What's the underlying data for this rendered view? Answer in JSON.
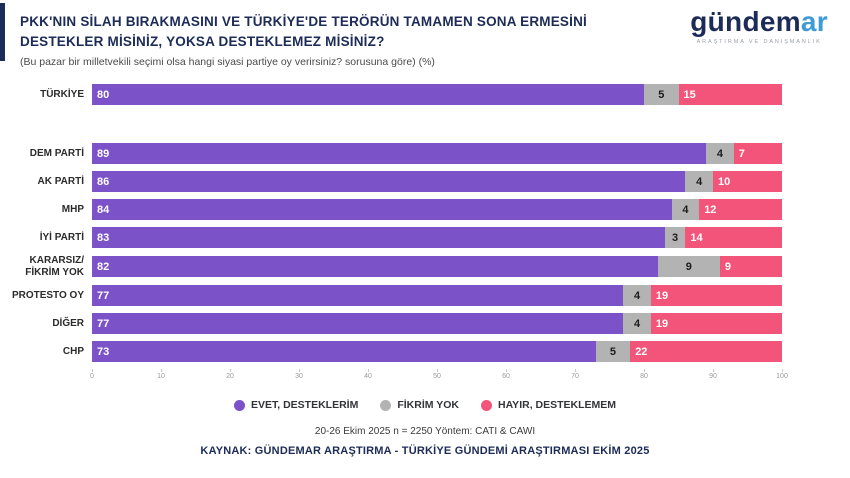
{
  "header": {
    "title_line1": "PKK'NIN SİLAH BIRAKMASINI VE TÜRKİYE'DE TERÖRÜN TAMAMEN SONA ERMESİNİ",
    "title_line2": "DESTEKLER MİSİNİZ, YOKSA DESTEKLEMEZ MİSİNİZ?",
    "subtitle": "(Bu pazar bir milletvekili seçimi olsa hangi siyasi partiye oy verirsiniz? sorusuna göre) (%)",
    "logo": {
      "text_primary": "gündem",
      "text_secondary": "ar",
      "tagline": "ARAŞTIRMA VE DANIŞMANLIK"
    }
  },
  "chart_data": {
    "type": "bar",
    "orientation": "horizontal",
    "stacked": true,
    "categories": [
      "TÜRKİYE",
      "DEM PARTİ",
      "AK PARTİ",
      "MHP",
      "İYİ PARTİ",
      "KARARSIZ/ FİKRİM YOK",
      "PROTESTO OY",
      "DİĞER",
      "CHP"
    ],
    "series": [
      {
        "name": "EVET, DESTEKLERİM",
        "color": "#7b52c8",
        "values": [
          80,
          89,
          86,
          84,
          83,
          82,
          77,
          77,
          73
        ]
      },
      {
        "name": "FİKRİM YOK",
        "color": "#b3b3b3",
        "values": [
          5,
          4,
          4,
          4,
          3,
          9,
          4,
          4,
          5
        ]
      },
      {
        "name": "HAYIR, DESTEKLEMEM",
        "color": "#f2547a",
        "values": [
          15,
          7,
          10,
          12,
          14,
          9,
          19,
          19,
          22
        ]
      }
    ],
    "xlim": [
      0,
      100
    ],
    "xticks": [
      0,
      10,
      20,
      30,
      40,
      50,
      60,
      70,
      80,
      90,
      100
    ],
    "xlabel": "",
    "ylabel": "",
    "grid": false,
    "legend_position": "bottom",
    "units": "%"
  },
  "footer": {
    "line1": "20-26 Ekim 2025 n = 2250 Yöntem: CATI & CAWI",
    "line2": "KAYNAK: GÜNDEMAR ARAŞTIRMA - TÜRKİYE GÜNDEMİ ARAŞTIRMASI EKİM 2025"
  }
}
